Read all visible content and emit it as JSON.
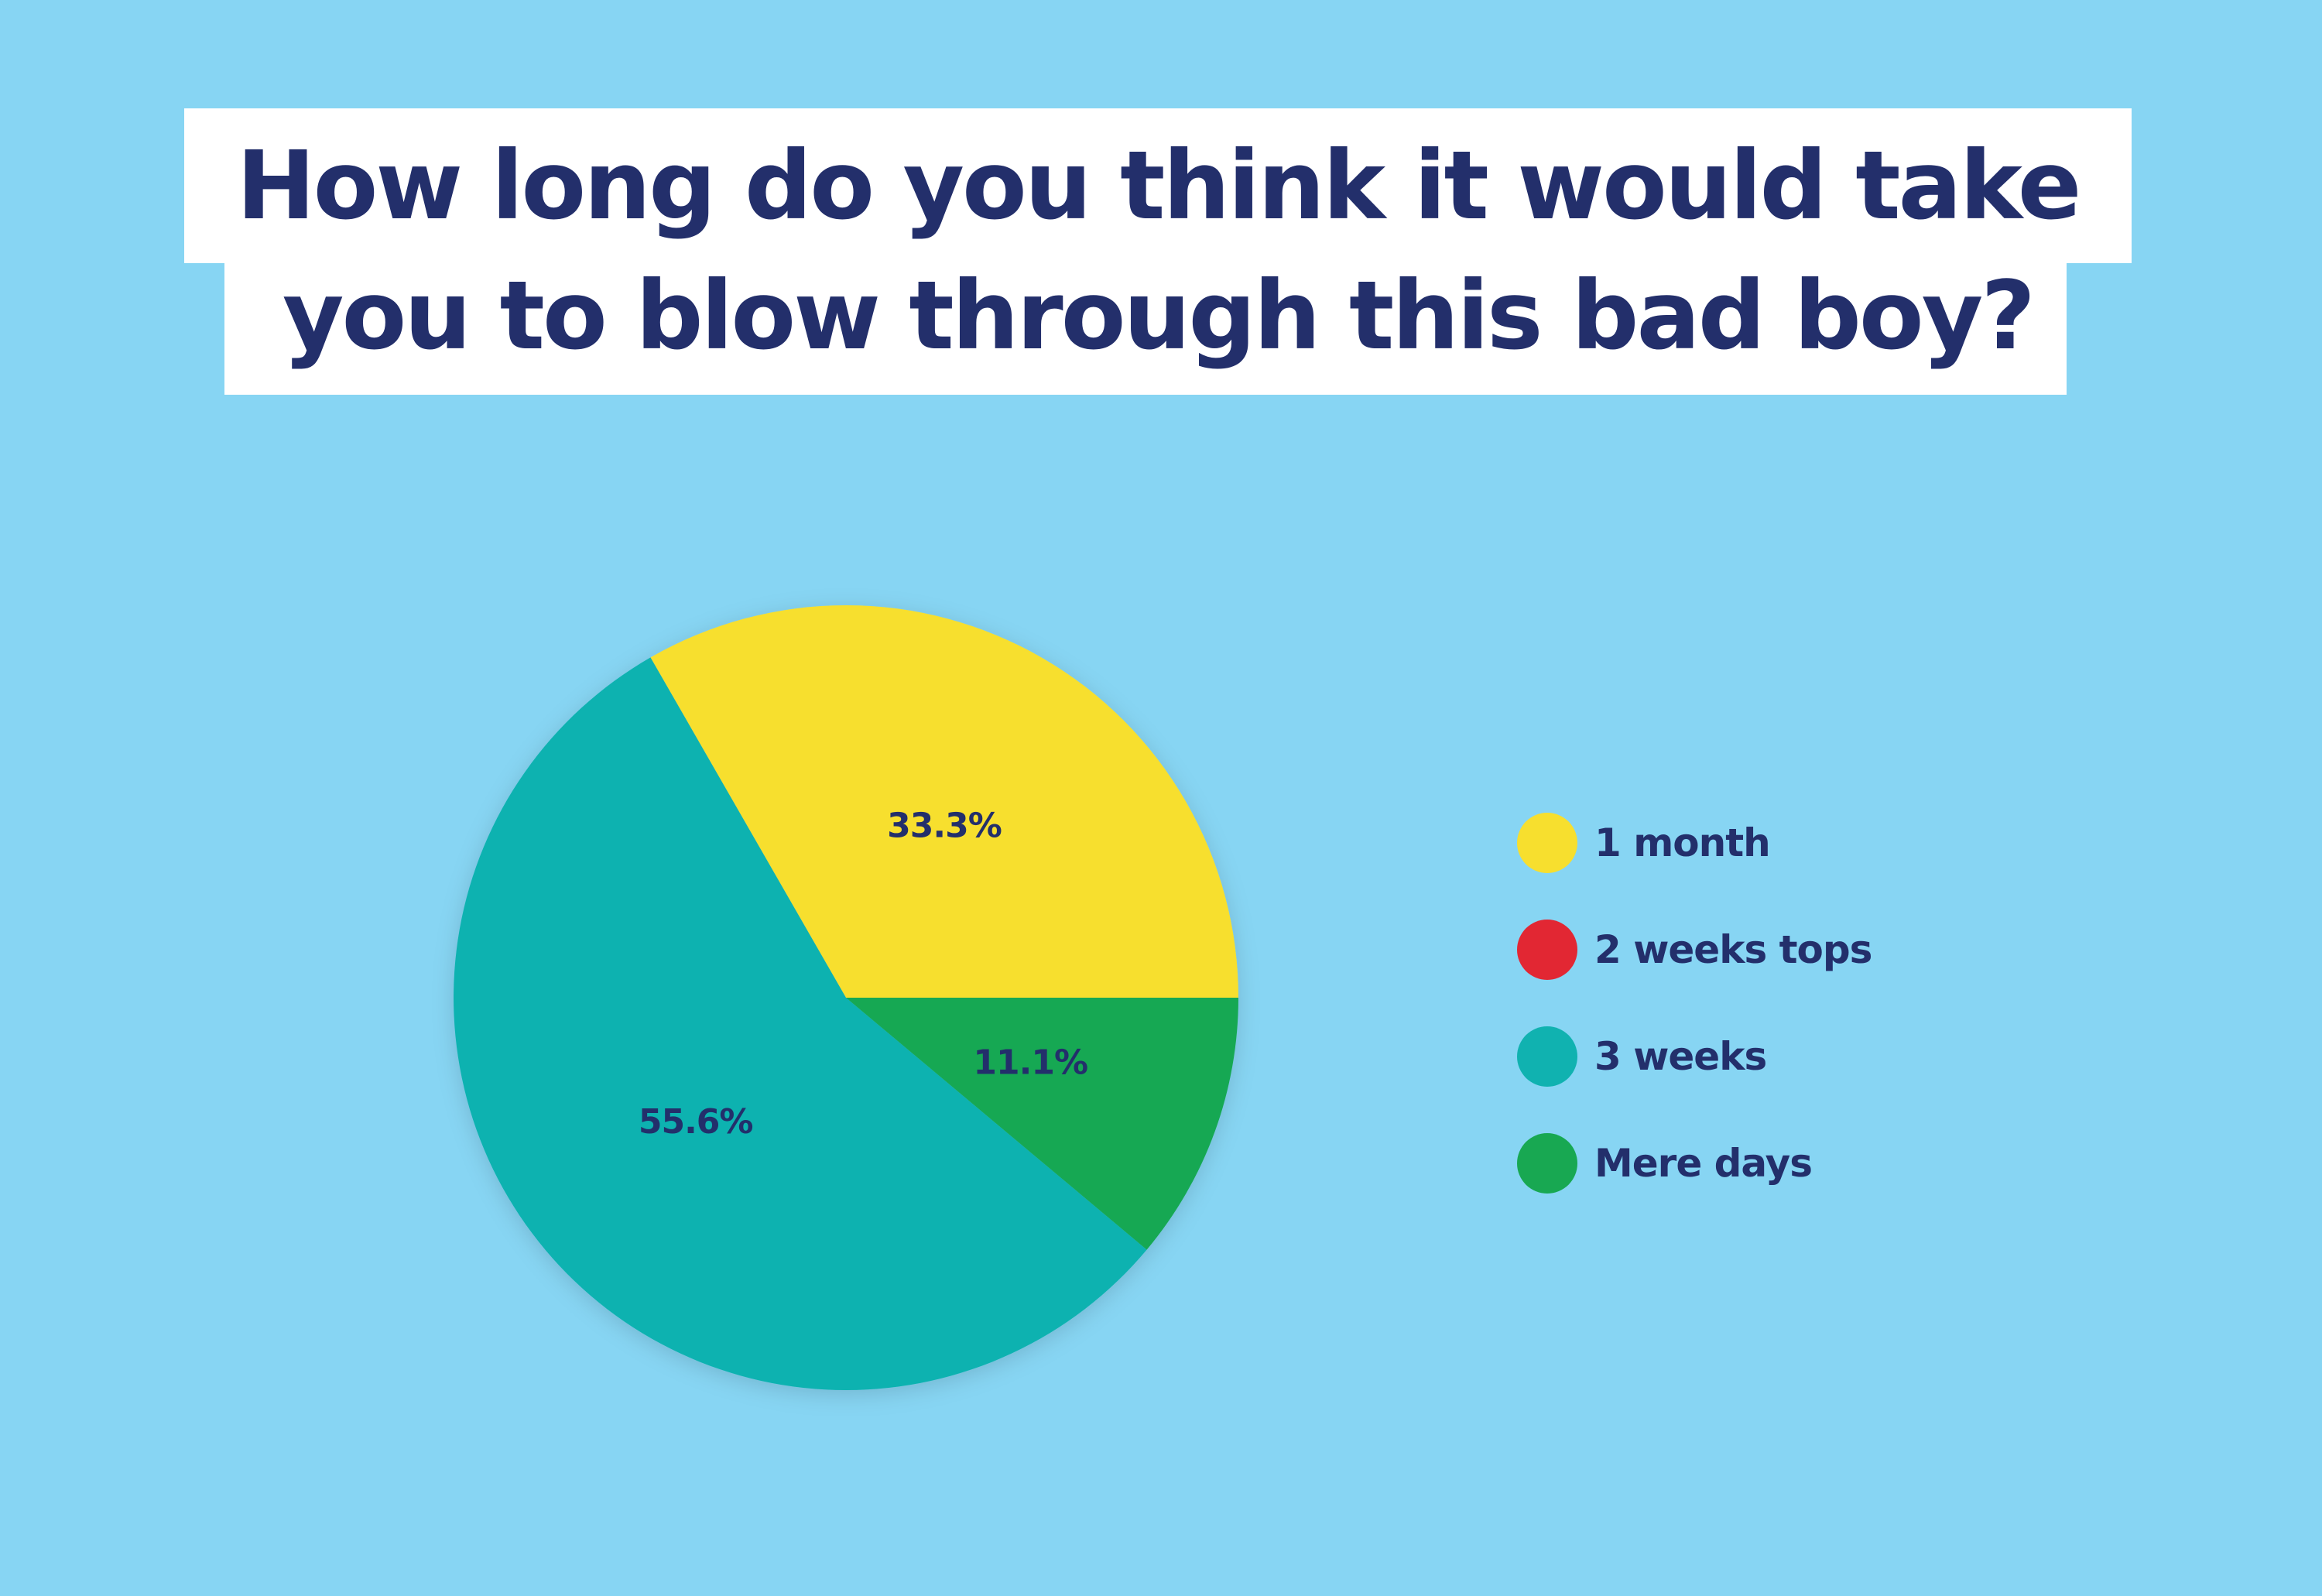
{
  "title_lines": [
    "How long do you think it would take",
    "you to blow through this bad boy?"
  ],
  "colors": {
    "background": "#87d5f3",
    "text": "#232f6b",
    "1 month": "#f7df2e",
    "2 weeks tops": "#e22733",
    "3 weeks": "#10b2b0",
    "Mere days": "#18a852"
  },
  "chart_data": {
    "type": "pie",
    "title": "How long do you think it would take you to blow through this bad boy?",
    "categories": [
      "1 month",
      "2 weeks tops",
      "3 weeks",
      "Mere days"
    ],
    "values": [
      33.3,
      0,
      55.6,
      11.1
    ],
    "labels": [
      "33.3%",
      "",
      "55.6%",
      "11.1%"
    ],
    "legend_position": "right"
  }
}
